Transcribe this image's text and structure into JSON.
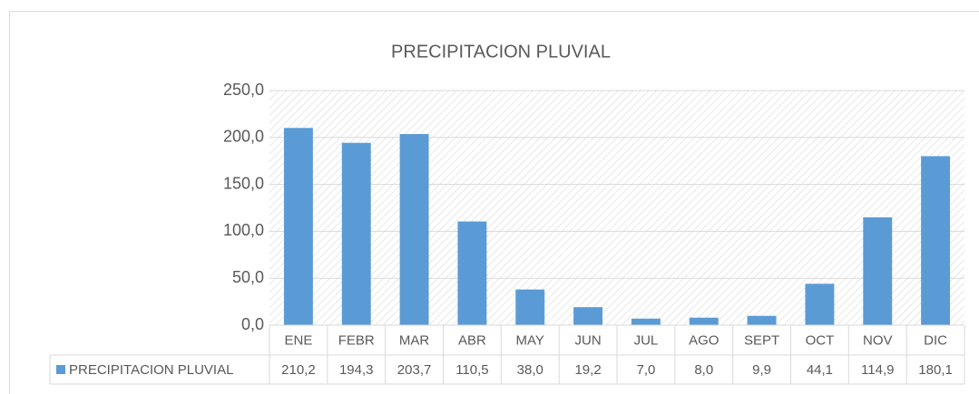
{
  "chart_data": {
    "type": "bar",
    "title": "PRECIPITACION PLUVIAL",
    "categories": [
      "ENE",
      "FEBR",
      "MAR",
      "ABR",
      "MAY",
      "JUN",
      "JUL",
      "AGO",
      "SEPT",
      "OCT",
      "NOV",
      "DIC"
    ],
    "series": [
      {
        "name": "PRECIPITACION PLUVIAL",
        "color": "#5b9bd5",
        "values": [
          210.2,
          194.3,
          203.7,
          110.5,
          38.0,
          19.2,
          7.0,
          8.0,
          9.9,
          44.1,
          114.9,
          180.1
        ],
        "value_labels": [
          "210,2",
          "194,3",
          "203,7",
          "110,5",
          "38,0",
          "19,2",
          "7,0",
          "8,0",
          "9,9",
          "44,1",
          "114,9",
          "180,1"
        ]
      }
    ],
    "ylim": [
      0,
      250
    ],
    "yticks": [
      {
        "value": 0,
        "label": "0,0"
      },
      {
        "value": 50,
        "label": "50,0"
      },
      {
        "value": 100,
        "label": "100,0"
      },
      {
        "value": 150,
        "label": "150,0"
      },
      {
        "value": 200,
        "label": "200,0"
      },
      {
        "value": 250,
        "label": "250,0"
      }
    ],
    "grid": true,
    "data_table": true
  }
}
